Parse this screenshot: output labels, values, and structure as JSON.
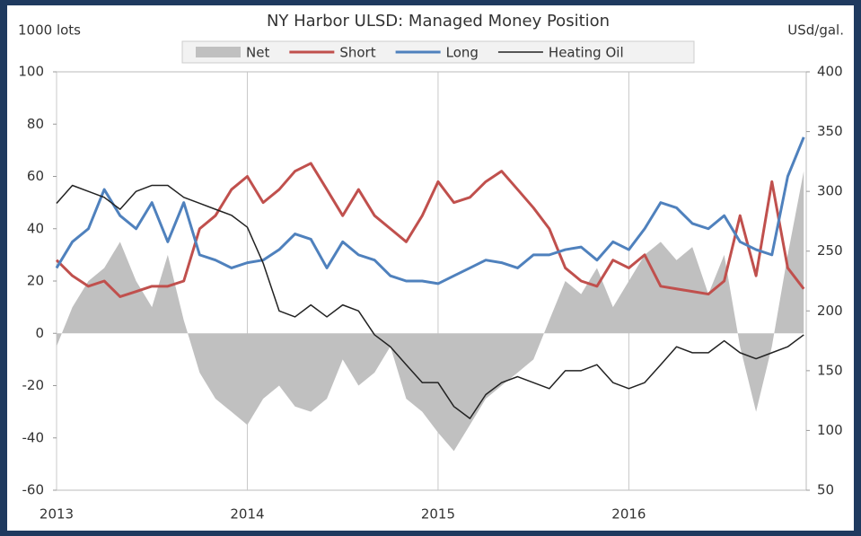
{
  "chart_data": {
    "type": "line",
    "title": "NY Harbor ULSD: Managed Money Position",
    "y_label": "1000 lots",
    "y2_label": "USd/gal.",
    "x": [
      2013.0,
      2013.083,
      2013.167,
      2013.25,
      2013.333,
      2013.417,
      2013.5,
      2013.583,
      2013.667,
      2013.75,
      2013.833,
      2013.917,
      2014.0,
      2014.083,
      2014.167,
      2014.25,
      2014.333,
      2014.417,
      2014.5,
      2014.583,
      2014.667,
      2014.75,
      2014.833,
      2014.917,
      2015.0,
      2015.083,
      2015.167,
      2015.25,
      2015.333,
      2015.417,
      2015.5,
      2015.583,
      2015.667,
      2015.75,
      2015.833,
      2015.917,
      2016.0,
      2016.083,
      2016.167,
      2016.25,
      2016.333,
      2016.417,
      2016.5,
      2016.583,
      2016.667,
      2016.75,
      2016.833,
      2016.917
    ],
    "series": [
      {
        "name": "Net",
        "kind": "area",
        "color": "#c0c0c0",
        "values": [
          -5,
          10,
          20,
          25,
          35,
          20,
          10,
          30,
          5,
          -15,
          -25,
          -30,
          -35,
          -25,
          -20,
          -28,
          -30,
          -25,
          -10,
          -20,
          -15,
          -5,
          -25,
          -30,
          -38,
          -45,
          -35,
          -25,
          -20,
          -15,
          -10,
          5,
          20,
          15,
          25,
          10,
          20,
          30,
          35,
          28,
          33,
          15,
          30,
          -5,
          -30,
          -5,
          30,
          62
        ]
      },
      {
        "name": "Short",
        "color": "#c0504d",
        "values": [
          28,
          22,
          18,
          20,
          14,
          16,
          18,
          18,
          20,
          40,
          45,
          55,
          60,
          50,
          55,
          62,
          65,
          55,
          45,
          55,
          45,
          40,
          35,
          45,
          58,
          50,
          52,
          58,
          62,
          55,
          48,
          40,
          25,
          20,
          18,
          28,
          25,
          30,
          18,
          17,
          16,
          15,
          20,
          45,
          22,
          58,
          25,
          17
        ]
      },
      {
        "name": "Long",
        "color": "#4f81bd",
        "values": [
          25,
          35,
          40,
          55,
          45,
          40,
          50,
          35,
          50,
          30,
          28,
          25,
          27,
          28,
          32,
          38,
          36,
          25,
          35,
          30,
          28,
          22,
          20,
          20,
          19,
          22,
          25,
          28,
          27,
          25,
          30,
          30,
          32,
          33,
          28,
          35,
          32,
          40,
          50,
          48,
          42,
          40,
          45,
          35,
          32,
          30,
          60,
          75
        ]
      },
      {
        "name": "Heating Oil",
        "axis": "y2",
        "color": "#222222",
        "values": [
          290,
          305,
          300,
          295,
          285,
          300,
          305,
          305,
          295,
          290,
          285,
          280,
          270,
          240,
          200,
          195,
          205,
          195,
          205,
          200,
          180,
          170,
          155,
          140,
          140,
          120,
          110,
          130,
          140,
          145,
          140,
          135,
          150,
          150,
          155,
          140,
          135,
          140,
          155,
          170,
          165,
          165,
          175,
          165,
          160,
          165,
          170,
          180
        ]
      }
    ],
    "xlim": [
      2013.0,
      2016.93
    ],
    "xticks": [
      2013,
      2014,
      2015,
      2016
    ],
    "ylim": [
      -60,
      100
    ],
    "yticks": [
      -60,
      -40,
      -20,
      0,
      20,
      40,
      60,
      80,
      100
    ],
    "y2lim": [
      50,
      400
    ],
    "y2ticks": [
      50,
      100,
      150,
      200,
      250,
      300,
      350,
      400
    ],
    "grid": "x"
  }
}
